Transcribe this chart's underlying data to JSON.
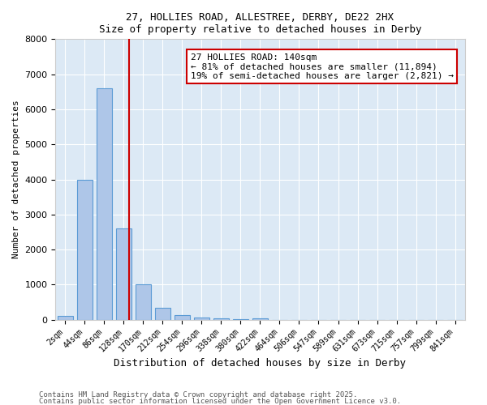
{
  "title1": "27, HOLLIES ROAD, ALLESTREE, DERBY, DE22 2HX",
  "title2": "Size of property relative to detached houses in Derby",
  "xlabel": "Distribution of detached houses by size in Derby",
  "ylabel": "Number of detached properties",
  "bin_labels": [
    "2sqm",
    "44sqm",
    "86sqm",
    "128sqm",
    "170sqm",
    "212sqm",
    "254sqm",
    "296sqm",
    "338sqm",
    "380sqm",
    "422sqm",
    "464sqm",
    "506sqm",
    "547sqm",
    "589sqm",
    "631sqm",
    "673sqm",
    "715sqm",
    "757sqm",
    "799sqm",
    "841sqm"
  ],
  "bar_values": [
    100,
    4000,
    6600,
    2600,
    1000,
    350,
    130,
    60,
    30,
    10,
    50,
    0,
    0,
    0,
    0,
    0,
    0,
    0,
    0,
    0,
    0
  ],
  "bar_color": "#aec6e8",
  "bar_edgecolor": "#5b9bd5",
  "background_color": "#dce9f5",
  "grid_color": "#ffffff",
  "vline_x": 2,
  "vline_color": "#cc0000",
  "ylim": [
    0,
    8000
  ],
  "annotation_text": "27 HOLLIES ROAD: 140sqm\n← 81% of detached houses are smaller (11,894)\n19% of semi-detached houses are larger (2,821) →",
  "annotation_box_color": "#cc0000",
  "footnote1": "Contains HM Land Registry data © Crown copyright and database right 2025.",
  "footnote2": "Contains public sector information licensed under the Open Government Licence v3.0."
}
